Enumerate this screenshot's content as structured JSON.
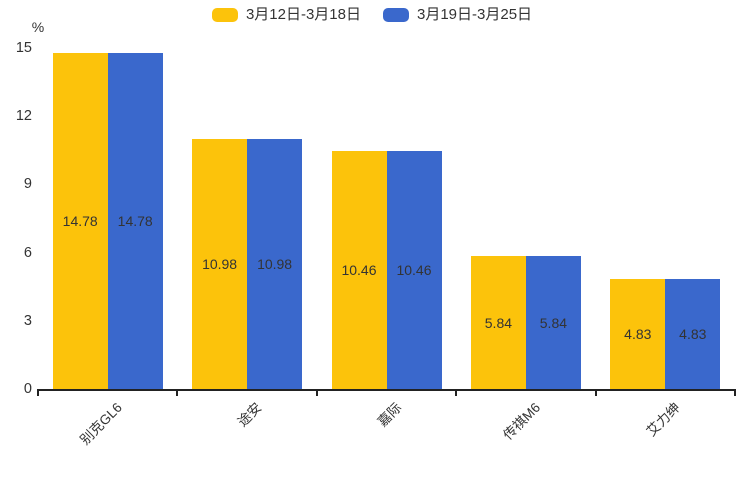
{
  "chart_data": {
    "type": "bar",
    "title": "",
    "categories": [
      "别克GL6",
      "途安",
      "嘉际",
      "传祺M6",
      "艾力绅"
    ],
    "series": [
      {
        "name": "3月12日-3月18日",
        "color": "#fcc30b",
        "values": [
          14.78,
          10.98,
          10.46,
          5.84,
          4.83
        ]
      },
      {
        "name": "3月19日-3月25日",
        "color": "#3a68cc",
        "values": [
          14.78,
          10.98,
          10.46,
          5.84,
          4.83
        ]
      }
    ],
    "ylabel": "%",
    "yticks": [
      0,
      3,
      6,
      9,
      12,
      15
    ],
    "ylim": [
      0,
      15
    ],
    "legend_position": "top",
    "grid": false,
    "bar_value_labels_shown": true,
    "value_label_color": "#333333",
    "axis_color": "#222222"
  }
}
